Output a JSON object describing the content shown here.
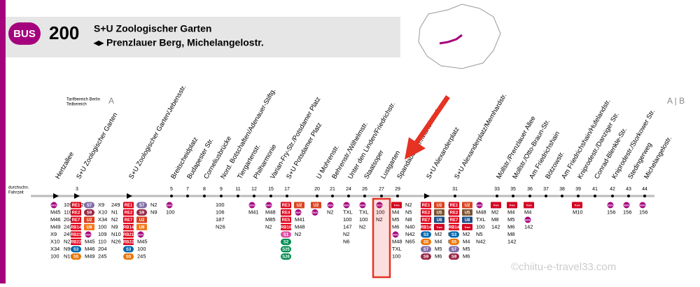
{
  "header": {
    "badge": "BUS",
    "line": "200",
    "from": "S+U Zoologischer Garten",
    "to": "◂▸ Prenzlauer Berg, Michelangelostr."
  },
  "tariff": {
    "label1": "Tarifbereich Berlin",
    "label2": "Teilbereich",
    "zone_a": "A",
    "zone_ab": "A | B"
  },
  "time_label": [
    "durchschn.",
    "Fahrzeit"
  ],
  "watermark": "©chiitu-e-travel33.com",
  "stops": [
    {
      "name": "Hertzallee",
      "time": null,
      "marker": "triangle",
      "connections": [
        "BUS",
        "M45",
        "M46",
        "M49",
        "X9",
        "X10",
        "X34",
        "100",
        "109",
        "110",
        "204",
        "245",
        "249",
        "N2",
        "N9",
        "N10",
        "N26"
      ]
    },
    {
      "name": "S+U Zoologischer Garten",
      "time": "3",
      "marker": "triangle",
      "connections": [
        "RE1",
        "RE2",
        "RE7",
        "RB14",
        "RB21",
        "RB22",
        "S3",
        "S5",
        "S7",
        "S9",
        "U2",
        "U9",
        "BUS",
        "M45",
        "M46",
        "M49",
        "X9",
        "X10",
        "X34",
        "100",
        "109",
        "110",
        "204",
        "245",
        "249",
        "N1",
        "N2",
        "N9",
        "N10",
        "N26"
      ]
    },
    {
      "name": "S+U Zoologischer Garten/Jebensstr.",
      "time": null,
      "marker": "triangle",
      "connections": [
        "RE1",
        "RE2",
        "RE7",
        "RB14",
        "RB21",
        "RB22",
        "S3",
        "S5",
        "S7",
        "S9",
        "U2",
        "U9",
        "BUS",
        "M45",
        "100",
        "245",
        "N2",
        "N9"
      ]
    },
    {
      "name": "Breitscheidplatz",
      "time": "5",
      "marker": "dot",
      "connections": [
        "BUS",
        "100"
      ]
    },
    {
      "name": "Budapester Str.",
      "time": "7",
      "marker": "dot",
      "connections": []
    },
    {
      "name": "Corneliusbrücke",
      "time": "8",
      "marker": "dot",
      "connections": []
    },
    {
      "name": "Nord. Botschaften/Adenauer-Stiftg.",
      "time": "9",
      "marker": "dot",
      "connections": [
        "100",
        "106",
        "187",
        "N26"
      ]
    },
    {
      "name": "Tiergartenstr.",
      "time": "11",
      "marker": "dot",
      "connections": []
    },
    {
      "name": "Philharmonie",
      "time": "12",
      "marker": "dot",
      "connections": [
        "BUS",
        "M41"
      ]
    },
    {
      "name": "Varian-Fry-Str./Potsdamer Platz",
      "time": "15",
      "marker": "dot",
      "connections": [
        "BUS",
        "M48",
        "M85",
        "N2"
      ]
    },
    {
      "name": "S+U Potsdamer Platz",
      "time": "17",
      "marker": "dot",
      "connections": [
        "RE3",
        "RE4",
        "RE5",
        "RB10",
        "S1",
        "S2",
        "S25",
        "S26",
        "U2",
        "BUS",
        "M41",
        "M48",
        "N2"
      ]
    },
    {
      "name": "U Mohrenstr.",
      "time": "20",
      "marker": "dot",
      "connections": [
        "U2",
        "BUS"
      ]
    },
    {
      "name": "Behrenstr./Wilhelmstr.",
      "time": "21",
      "marker": "dot",
      "connections": [
        "BUS",
        "N2"
      ]
    },
    {
      "name": "Unter den Linden/Friedrichstr.",
      "time": "24",
      "marker": "dot",
      "connections": [
        "BUS",
        "TXL",
        "100",
        "147",
        "N2",
        "N6"
      ]
    },
    {
      "name": "Staatsoper",
      "time": "26",
      "marker": "dot",
      "connections": [
        "BUS",
        "TXL",
        "100",
        "N2"
      ]
    },
    {
      "name": "Lustgarten",
      "time": "27",
      "marker": "dot",
      "connections": [
        "BUS",
        "100",
        "N2"
      ]
    },
    {
      "name": "Spandauer Str./Marienkirche",
      "time": "29",
      "marker": "dot",
      "connections": [
        "Tram",
        "M4",
        "M5",
        "M6",
        "BUS",
        "M48",
        "TXL",
        "100",
        "N2",
        "N5",
        "N8",
        "N40",
        "N42",
        "N65"
      ]
    },
    {
      "name": "S+U Alexanderplatz",
      "time": null,
      "marker": "triangle",
      "connections": [
        "RE1",
        "RE2",
        "RE7",
        "RB14",
        "S3",
        "S5",
        "S7",
        "S9",
        "U2",
        "U5",
        "U8",
        "Tram",
        "M2",
        "M4",
        "M5",
        "M6",
        "BUS",
        "M48",
        "TXL",
        "100",
        "N5",
        "N42"
      ]
    },
    {
      "name": "S+U Alexanderplatz/Memhardstr.",
      "time": "31",
      "marker": "dot",
      "connections": [
        "RE1",
        "RE2",
        "RE7",
        "RB14",
        "S3",
        "S5",
        "S7",
        "S9",
        "U2",
        "U5",
        "U8",
        "Tram",
        "M2",
        "M4",
        "M5",
        "M6",
        "BUS",
        "M48",
        "TXL",
        "100",
        "N5",
        "N42"
      ]
    },
    {
      "name": "Mollstr./Prenzlauer Allee",
      "time": "33",
      "marker": "dot",
      "connections": [
        "Tram",
        "M2",
        "M8",
        "142"
      ]
    },
    {
      "name": "Mollstr./Otto-Braun-Str.",
      "time": "35",
      "marker": "dot",
      "connections": [
        "Tram",
        "M4",
        "M5",
        "M6",
        "M8",
        "142"
      ]
    },
    {
      "name": "Am Friedrichshain",
      "time": "36",
      "marker": "dot",
      "connections": [
        "Tram",
        "M4",
        "BUS",
        "142"
      ]
    },
    {
      "name": "Bötzowstr.",
      "time": "37",
      "marker": "dot",
      "connections": []
    },
    {
      "name": "Am Friedrichshain/Hufelandstr.",
      "time": "38",
      "marker": "dot",
      "connections": []
    },
    {
      "name": "Kniprodestr./Danziger Str.",
      "time": "39",
      "marker": "dot",
      "connections": [
        "Tram",
        "M10"
      ]
    },
    {
      "name": "Conrad-Blenkle-Str.",
      "time": "41",
      "marker": "dot",
      "connections": []
    },
    {
      "name": "Kniprodestr./Storkower Str.",
      "time": "42",
      "marker": "dot",
      "connections": [
        "BUS",
        "156"
      ]
    },
    {
      "name": "Stedingerweg",
      "time": "43",
      "marker": "dot",
      "connections": [
        "BUS",
        "156"
      ]
    },
    {
      "name": "Michelangelostr.",
      "time": "44",
      "marker": "dot",
      "connections": [
        "BUS",
        "156"
      ]
    }
  ]
}
